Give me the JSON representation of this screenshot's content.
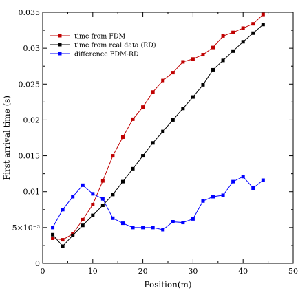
{
  "chart_data": {
    "type": "line",
    "xlabel": "Position(m)",
    "ylabel": "First arrival time (s)",
    "xlim": [
      0,
      50
    ],
    "ylim": [
      0,
      0.035
    ],
    "x_ticks": [
      {
        "value": 0,
        "label": "0"
      },
      {
        "value": 10,
        "label": "10"
      },
      {
        "value": 20,
        "label": "20"
      },
      {
        "value": 30,
        "label": "30"
      },
      {
        "value": 40,
        "label": "40"
      },
      {
        "value": 50,
        "label": "50"
      }
    ],
    "y_ticks": [
      {
        "value": 0,
        "label": "0"
      },
      {
        "value": 0.005,
        "label": "5×10⁻³"
      },
      {
        "value": 0.01,
        "label": "0.01"
      },
      {
        "value": 0.015,
        "label": "0.015"
      },
      {
        "value": 0.02,
        "label": "0.02"
      },
      {
        "value": 0.025,
        "label": "0.025"
      },
      {
        "value": 0.03,
        "label": "0.03"
      },
      {
        "value": 0.035,
        "label": "0.035"
      }
    ],
    "grid": false,
    "legend_position": "top-left",
    "series": [
      {
        "name": "time from FDM",
        "color": "#c00000",
        "marker": "square",
        "x": [
          2,
          4,
          6,
          8,
          10,
          12,
          14,
          16,
          18,
          20,
          22,
          24,
          26,
          28,
          30,
          32,
          34,
          36,
          38,
          40,
          42,
          44
        ],
        "y": [
          0.0035,
          0.0033,
          0.0041,
          0.0061,
          0.0082,
          0.0115,
          0.015,
          0.0176,
          0.0201,
          0.0218,
          0.0239,
          0.0255,
          0.0266,
          0.0281,
          0.0285,
          0.0291,
          0.0301,
          0.0317,
          0.0322,
          0.0328,
          0.0334,
          0.0347
        ]
      },
      {
        "name": "time from real data (RD)",
        "color": "#000000",
        "marker": "square",
        "x": [
          2,
          4,
          6,
          8,
          10,
          12,
          14,
          16,
          18,
          20,
          22,
          24,
          26,
          28,
          30,
          32,
          34,
          36,
          38,
          40,
          42,
          44
        ],
        "y": [
          0.004,
          0.0024,
          0.0039,
          0.0053,
          0.0067,
          0.0081,
          0.0096,
          0.0114,
          0.0132,
          0.015,
          0.0168,
          0.0184,
          0.02,
          0.0216,
          0.0232,
          0.0249,
          0.027,
          0.0283,
          0.0296,
          0.0309,
          0.0321,
          0.0333
        ]
      },
      {
        "name": "difference FDM-RD",
        "color": "#0000ff",
        "marker": "square",
        "x": [
          2,
          4,
          6,
          8,
          10,
          12,
          14,
          16,
          18,
          20,
          22,
          24,
          26,
          28,
          30,
          32,
          34,
          36,
          38,
          40,
          42,
          44
        ],
        "y": [
          0.005,
          0.0075,
          0.0093,
          0.0109,
          0.0097,
          0.009,
          0.0063,
          0.0056,
          0.005,
          0.005,
          0.005,
          0.0047,
          0.0058,
          0.0057,
          0.0062,
          0.0087,
          0.0093,
          0.0095,
          0.0114,
          0.0121,
          0.0105,
          0.0116
        ]
      }
    ]
  }
}
